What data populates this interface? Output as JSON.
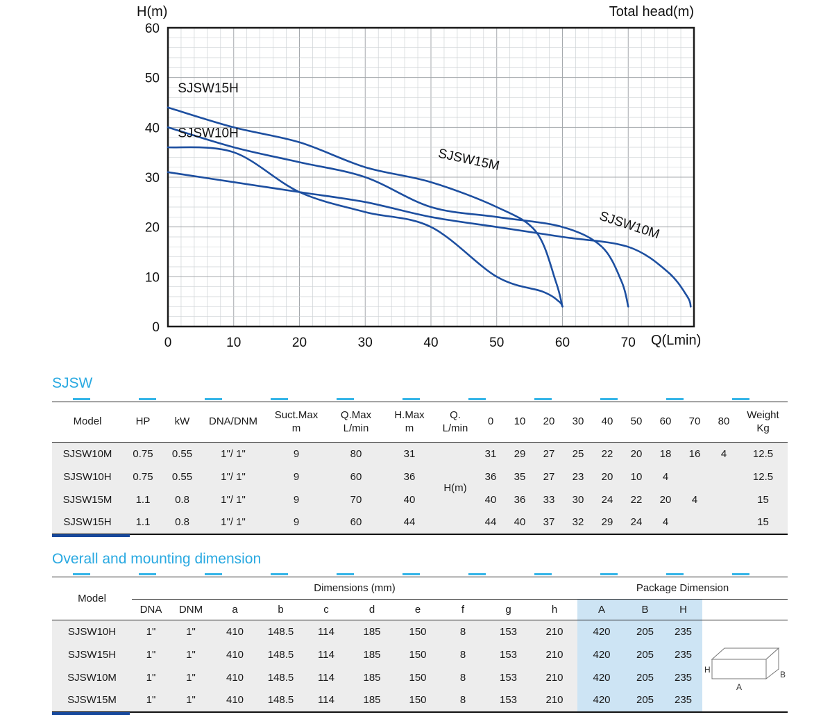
{
  "chart_data": {
    "type": "line",
    "title": "",
    "xlabel": "Q(Lmin)",
    "ylabel": "H(m)",
    "right_label": "Total head(m)",
    "xlim": [
      0,
      80
    ],
    "ylim": [
      0,
      60
    ],
    "xticks": [
      0,
      10,
      20,
      30,
      40,
      50,
      60,
      70
    ],
    "yticks": [
      0,
      10,
      20,
      30,
      40,
      50,
      60
    ],
    "grid": {
      "minor_step": 2,
      "major_step": 10
    },
    "line_color": "#1d4fa0",
    "series": [
      {
        "name": "SJSW15H",
        "x": [
          0,
          10,
          20,
          30,
          40,
          50,
          56,
          59,
          60
        ],
        "y": [
          44,
          40,
          37,
          32,
          29,
          24,
          19,
          9,
          4
        ],
        "label_x": 1.5,
        "label_y": 47,
        "label_rotate": 0
      },
      {
        "name": "SJSW10H",
        "x": [
          0,
          10,
          20,
          30,
          40,
          50,
          57,
          59.5,
          60
        ],
        "y": [
          36,
          35,
          27,
          23,
          20,
          10,
          7,
          5,
          4
        ],
        "label_x": 1.5,
        "label_y": 38,
        "label_rotate": 0
      },
      {
        "name": "SJSW15M",
        "x": [
          0,
          10,
          20,
          30,
          40,
          50,
          60,
          66,
          69,
          70
        ],
        "y": [
          40,
          36,
          33,
          30,
          24,
          22,
          20,
          16,
          9,
          4
        ],
        "label_x": 41,
        "label_y": 34,
        "label_rotate": 12
      },
      {
        "name": "SJSW10M",
        "x": [
          0,
          10,
          20,
          30,
          40,
          50,
          60,
          70,
          76,
          79,
          79.5
        ],
        "y": [
          31,
          29,
          27,
          25,
          22,
          20,
          18,
          16,
          11,
          6,
          4
        ],
        "label_x": 65.5,
        "label_y": 21.5,
        "label_rotate": 18
      }
    ]
  },
  "table1": {
    "title": "SJSW",
    "headers": [
      "Model",
      "HP",
      "kW",
      "DNA/DNM",
      "Suct.Max\nm",
      "Q.Max\nL/min",
      "H.Max\nm",
      "Q.\nL/min",
      "0",
      "10",
      "20",
      "30",
      "40",
      "50",
      "60",
      "70",
      "80",
      "Weight\nKg"
    ],
    "q_col_label": "H(m)",
    "rows": [
      {
        "cells": [
          "SJSW10M",
          "0.75",
          "0.55",
          "1\"/ 1\"",
          "9",
          "80",
          "31",
          "31",
          "29",
          "27",
          "25",
          "22",
          "20",
          "18",
          "16",
          "4",
          "12.5"
        ]
      },
      {
        "cells": [
          "SJSW10H",
          "0.75",
          "0.55",
          "1\"/ 1\"",
          "9",
          "60",
          "36",
          "36",
          "35",
          "27",
          "23",
          "20",
          "10",
          "4",
          "",
          "",
          "12.5"
        ]
      },
      {
        "cells": [
          "SJSW15M",
          "1.1",
          "0.8",
          "1\"/ 1\"",
          "9",
          "70",
          "40",
          "40",
          "36",
          "33",
          "30",
          "24",
          "22",
          "20",
          "4",
          "",
          "15"
        ]
      },
      {
        "cells": [
          "SJSW15H",
          "1.1",
          "0.8",
          "1\"/ 1\"",
          "9",
          "60",
          "44",
          "44",
          "40",
          "37",
          "32",
          "29",
          "24",
          "4",
          "",
          "",
          "15"
        ]
      }
    ]
  },
  "table2": {
    "title": "Overall and mounting dimension",
    "group_model": "Model",
    "group_dims": "Dimensions (mm)",
    "group_pkg": "Package Dimension",
    "sub_headers": [
      "DNA",
      "DNM",
      "a",
      "b",
      "c",
      "d",
      "e",
      "f",
      "g",
      "h",
      "A",
      "B",
      "H"
    ],
    "rows": [
      {
        "cells": [
          "SJSW10H",
          "1\"",
          "1\"",
          "410",
          "148.5",
          "114",
          "185",
          "150",
          "8",
          "153",
          "210",
          "420",
          "205",
          "235"
        ]
      },
      {
        "cells": [
          "SJSW15H",
          "1\"",
          "1\"",
          "410",
          "148.5",
          "114",
          "185",
          "150",
          "8",
          "153",
          "210",
          "420",
          "205",
          "235"
        ]
      },
      {
        "cells": [
          "SJSW10M",
          "1\"",
          "1\"",
          "410",
          "148.5",
          "114",
          "185",
          "150",
          "8",
          "153",
          "210",
          "420",
          "205",
          "235"
        ]
      },
      {
        "cells": [
          "SJSW15M",
          "1\"",
          "1\"",
          "410",
          "148.5",
          "114",
          "185",
          "150",
          "8",
          "153",
          "210",
          "420",
          "205",
          "235"
        ]
      }
    ],
    "box_labels": {
      "H": "H",
      "A": "A",
      "B": "B"
    }
  },
  "colors": {
    "accent_cyan": "#29a9e1",
    "curve_blue": "#1d4fa0",
    "row_gray": "#ededed",
    "package_blue": "#cde4f4",
    "underline_navy": "#17489c"
  }
}
